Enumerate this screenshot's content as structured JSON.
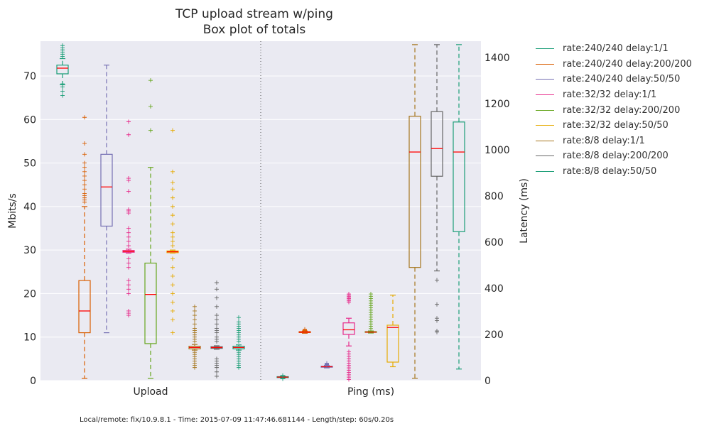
{
  "chart_data": {
    "type": "box",
    "title": "TCP upload stream w/ping",
    "subtitle": "Box plot of totals",
    "groups": [
      "Upload",
      "Ping (ms)"
    ],
    "left_axis": {
      "label": "Mbits/s",
      "range": [
        0,
        78
      ],
      "ticks": [
        0,
        10,
        20,
        30,
        40,
        50,
        60,
        70
      ]
    },
    "right_axis": {
      "label": "Latency (ms)",
      "range": [
        0,
        1470
      ],
      "ticks": [
        0,
        200,
        400,
        600,
        800,
        1000,
        1200,
        1400
      ]
    },
    "median_color": "#ff0000",
    "legend_position": "outside-right",
    "series": [
      {
        "name": "rate:240/240 delay:1/1",
        "color": "#1b9e77",
        "upload": {
          "whislo": 68,
          "q1": 70.5,
          "med": 71.8,
          "q3": 72.5,
          "whishi": 74,
          "fliers": [
            65.5,
            66.5,
            67.5,
            68,
            68.2,
            74.5,
            75,
            75.5,
            76,
            76.5,
            77
          ]
        },
        "ping": {
          "whislo": 10,
          "q1": 13,
          "med": 15,
          "q3": 17,
          "whishi": 20,
          "fliers": [
            8,
            22
          ]
        }
      },
      {
        "name": "rate:240/240 delay:200/200",
        "color": "#d95f02",
        "upload": {
          "whislo": 0.5,
          "q1": 11,
          "med": 16,
          "q3": 23,
          "whishi": 40,
          "fliers": [
            41,
            41.5,
            42,
            42.5,
            43,
            44,
            45,
            46,
            47,
            48,
            49,
            50,
            52,
            54.5,
            60.5
          ]
        },
        "ping": {
          "whislo": 205,
          "q1": 208,
          "med": 210,
          "q3": 212,
          "whishi": 215,
          "fliers": [
            218,
            220,
            222
          ]
        }
      },
      {
        "name": "rate:240/240 delay:50/50",
        "color": "#7570b3",
        "upload": {
          "whislo": 11,
          "q1": 35.5,
          "med": 44.5,
          "q3": 52,
          "whishi": 72.5,
          "fliers": []
        },
        "ping": {
          "whislo": 55,
          "q1": 58,
          "med": 60,
          "q3": 62,
          "whishi": 66,
          "fliers": [
            68,
            70,
            72,
            75
          ]
        }
      },
      {
        "name": "rate:32/32 delay:1/1",
        "color": "#e7298a",
        "upload": {
          "whislo": 29.3,
          "q1": 29.5,
          "med": 29.7,
          "q3": 29.9,
          "whishi": 30.2,
          "fliers": [
            15,
            15.5,
            16,
            20,
            21,
            22,
            23,
            26,
            27,
            28,
            31,
            32,
            33,
            34,
            35,
            38.5,
            39,
            39.3,
            43.5,
            46,
            46.5,
            56.5,
            59.5
          ]
        },
        "ping": {
          "whislo": 150,
          "q1": 200,
          "med": 220,
          "q3": 250,
          "whishi": 270,
          "fliers": [
            5,
            15,
            25,
            35,
            45,
            55,
            65,
            75,
            85,
            95,
            105,
            115,
            125,
            340,
            345,
            350,
            355,
            360,
            365,
            370,
            375
          ]
        }
      },
      {
        "name": "rate:32/32 delay:200/200",
        "color": "#66a61e",
        "upload": {
          "whislo": 0.5,
          "q1": 8.5,
          "med": 19.8,
          "q3": 27,
          "whishi": 49,
          "fliers": [
            57.5,
            63,
            69
          ]
        },
        "ping": {
          "whislo": 206,
          "q1": 209,
          "med": 210,
          "q3": 212,
          "whishi": 215,
          "fliers": [
            225,
            235,
            245,
            255,
            265,
            275,
            285,
            295,
            305,
            315,
            325,
            335,
            345,
            355,
            365,
            375
          ]
        }
      },
      {
        "name": "rate:32/32 delay:50/50",
        "color": "#e6ab02",
        "upload": {
          "whislo": 29.3,
          "q1": 29.4,
          "med": 29.6,
          "q3": 29.8,
          "whishi": 30,
          "fliers": [
            11,
            14,
            16,
            18,
            20,
            22,
            24,
            26,
            28,
            31,
            32,
            33,
            34,
            36,
            38,
            40,
            42,
            44,
            45.5,
            48,
            57.5
          ]
        },
        "ping": {
          "whislo": 60,
          "q1": 80,
          "med": 230,
          "q3": 240,
          "whishi": 370,
          "fliers": []
        }
      },
      {
        "name": "rate:8/8 delay:1/1",
        "color": "#a6761d",
        "upload": {
          "whislo": 7,
          "q1": 7.3,
          "med": 7.6,
          "q3": 7.9,
          "whishi": 8.3,
          "fliers": [
            3,
            3.5,
            4,
            4.5,
            5,
            5.5,
            6,
            6.5,
            9,
            9.5,
            10,
            10.5,
            11,
            11.5,
            12,
            13,
            14,
            15,
            16,
            17
          ]
        },
        "ping": {
          "whislo": 10,
          "q1": 490,
          "med": 990,
          "q3": 1145,
          "whishi": 1455,
          "fliers": []
        }
      },
      {
        "name": "rate:8/8 delay:200/200",
        "color": "#666666",
        "upload": {
          "whislo": 7.2,
          "q1": 7.4,
          "med": 7.6,
          "q3": 7.8,
          "whishi": 8,
          "fliers": [
            1,
            2,
            3,
            3.5,
            4,
            4.5,
            5,
            9,
            9.5,
            10,
            11,
            11.5,
            12,
            13,
            14,
            15,
            17,
            19,
            21,
            22.5
          ]
        },
        "ping": {
          "whislo": 475,
          "q1": 885,
          "med": 1005,
          "q3": 1165,
          "whishi": 1455,
          "fliers": [
            210,
            215,
            260,
            270,
            330,
            435
          ]
        }
      },
      {
        "name": "rate:8/8 delay:50/50",
        "color": "#1b9e77",
        "upload": {
          "whislo": 7,
          "q1": 7.3,
          "med": 7.6,
          "q3": 7.9,
          "whishi": 8.2,
          "fliers": [
            3,
            3.5,
            4,
            4.5,
            5,
            5.5,
            6,
            6.5,
            9,
            9.5,
            10,
            10.5,
            11,
            11.5,
            12,
            12.5,
            13,
            13.5,
            14.5
          ]
        },
        "ping": {
          "whislo": 50,
          "q1": 645,
          "med": 990,
          "q3": 1120,
          "whishi": 1455,
          "fliers": []
        }
      }
    ]
  },
  "footer": "Local/remote: fix/10.9.8.1 - Time: 2015-07-09 11:47:46.681144 - Length/step: 60s/0.20s"
}
